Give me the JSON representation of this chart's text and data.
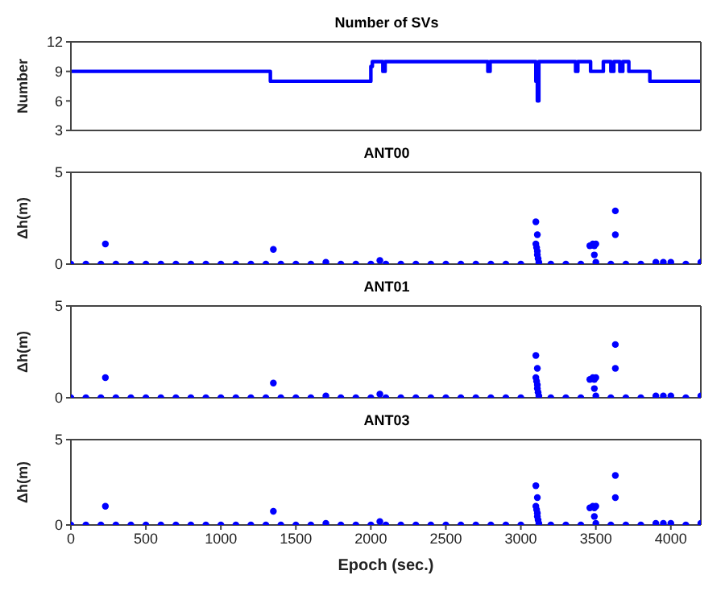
{
  "chart_data": [
    {
      "type": "step",
      "title": "Number of SVs",
      "ylabel": "Number",
      "xlim": [
        0,
        4200
      ],
      "xticks": [
        0,
        500,
        1000,
        1500,
        2000,
        2500,
        3000,
        3500,
        4000
      ],
      "ylim": [
        3,
        12
      ],
      "yticks": [
        3,
        6,
        9,
        12
      ],
      "tick_labels": "y",
      "marker": "none",
      "line_style": "solid",
      "series": [
        {
          "color": "#0000ff",
          "x": [
            0,
            1330,
            2000,
            2010,
            2080,
            2095,
            2780,
            2795,
            3100,
            3110,
            3120,
            3365,
            3380,
            3465,
            3550,
            3600,
            3620,
            3660,
            3680,
            3720,
            3860,
            4200
          ],
          "values": [
            9,
            8,
            9.5,
            10,
            9,
            10,
            9,
            10,
            8,
            6,
            10,
            9,
            10,
            9,
            10,
            9,
            10,
            9,
            10,
            9,
            8,
            8
          ]
        }
      ]
    },
    {
      "type": "scatter",
      "title": "ANT00",
      "ylabel": "Δh(m)",
      "xlim": [
        0,
        4200
      ],
      "xticks": [
        0,
        500,
        1000,
        1500,
        2000,
        2500,
        3000,
        3500,
        4000
      ],
      "ylim": [
        0,
        5
      ],
      "yticks": [
        0,
        5
      ],
      "tick_labels": "y",
      "marker": "circle",
      "series": [
        {
          "color": "#0000ff",
          "x": [
            0,
            100,
            200,
            230,
            300,
            400,
            500,
            600,
            700,
            800,
            900,
            1000,
            1100,
            1200,
            1300,
            1350,
            1400,
            1500,
            1600,
            1700,
            1800,
            1900,
            2000,
            2060,
            2100,
            2200,
            2300,
            2400,
            2500,
            2600,
            2700,
            2800,
            2900,
            3000,
            3100,
            3100,
            3105,
            3110,
            3110,
            3110,
            3115,
            3120,
            3200,
            3300,
            3400,
            3460,
            3480,
            3490,
            3490,
            3500,
            3500,
            3600,
            3630,
            3630,
            3700,
            3800,
            3900,
            3950,
            4000,
            4100,
            4200
          ],
          "values": [
            0,
            0,
            0,
            1.1,
            0,
            0,
            0,
            0,
            0,
            0,
            0,
            0,
            0,
            0,
            0,
            0.8,
            0,
            0,
            0,
            0.1,
            0,
            0,
            0,
            0.2,
            0,
            0,
            0,
            0,
            0,
            0,
            0,
            0,
            0,
            0,
            2.3,
            1.1,
            0.9,
            1.6,
            0.7,
            0.5,
            0.3,
            0.1,
            0,
            0,
            0,
            1.0,
            1.1,
            1.0,
            0.5,
            1.1,
            0.1,
            0,
            2.9,
            1.6,
            0,
            0,
            0.1,
            0.1,
            0.1,
            0,
            0.1
          ]
        }
      ]
    },
    {
      "type": "scatter",
      "title": "ANT01",
      "ylabel": "Δh(m)",
      "xlim": [
        0,
        4200
      ],
      "xticks": [
        0,
        500,
        1000,
        1500,
        2000,
        2500,
        3000,
        3500,
        4000
      ],
      "ylim": [
        0,
        5
      ],
      "yticks": [
        0,
        5
      ],
      "tick_labels": "y",
      "marker": "circle",
      "series": [
        {
          "color": "#0000ff",
          "x": [
            0,
            100,
            200,
            230,
            300,
            400,
            500,
            600,
            700,
            800,
            900,
            1000,
            1100,
            1200,
            1300,
            1350,
            1400,
            1500,
            1600,
            1700,
            1800,
            1900,
            2000,
            2060,
            2100,
            2200,
            2300,
            2400,
            2500,
            2600,
            2700,
            2800,
            2900,
            3000,
            3100,
            3100,
            3105,
            3110,
            3110,
            3110,
            3115,
            3120,
            3200,
            3300,
            3400,
            3460,
            3480,
            3490,
            3490,
            3500,
            3500,
            3600,
            3630,
            3630,
            3700,
            3800,
            3900,
            3950,
            4000,
            4100,
            4200
          ],
          "values": [
            0,
            0,
            0,
            1.1,
            0,
            0,
            0,
            0,
            0,
            0,
            0,
            0,
            0,
            0,
            0,
            0.8,
            0,
            0,
            0,
            0.1,
            0,
            0,
            0,
            0.2,
            0,
            0,
            0,
            0,
            0,
            0,
            0,
            0,
            0,
            0,
            2.3,
            1.1,
            0.9,
            1.6,
            0.7,
            0.5,
            0.3,
            0.1,
            0,
            0,
            0,
            1.0,
            1.1,
            1.0,
            0.5,
            1.1,
            0.1,
            0,
            2.9,
            1.6,
            0,
            0,
            0.1,
            0.1,
            0.1,
            0,
            0.1
          ]
        }
      ]
    },
    {
      "type": "scatter",
      "title": "ANT03",
      "ylabel": "Δh(m)",
      "xlabel": "Epoch (sec.)",
      "xlim": [
        0,
        4200
      ],
      "xticks": [
        0,
        500,
        1000,
        1500,
        2000,
        2500,
        3000,
        3500,
        4000
      ],
      "ylim": [
        0,
        5
      ],
      "yticks": [
        0,
        5
      ],
      "marker": "circle",
      "series": [
        {
          "color": "#0000ff",
          "x": [
            0,
            100,
            200,
            230,
            300,
            400,
            500,
            600,
            700,
            800,
            900,
            1000,
            1100,
            1200,
            1300,
            1350,
            1400,
            1500,
            1600,
            1700,
            1800,
            1900,
            2000,
            2060,
            2100,
            2200,
            2300,
            2400,
            2500,
            2600,
            2700,
            2800,
            2900,
            3000,
            3100,
            3100,
            3105,
            3110,
            3110,
            3110,
            3115,
            3120,
            3200,
            3300,
            3400,
            3460,
            3480,
            3490,
            3490,
            3500,
            3500,
            3600,
            3630,
            3630,
            3700,
            3800,
            3900,
            3950,
            4000,
            4100,
            4200
          ],
          "values": [
            0,
            0,
            0,
            1.1,
            0,
            0,
            0,
            0,
            0,
            0,
            0,
            0,
            0,
            0,
            0,
            0.8,
            0,
            0,
            0,
            0.1,
            0,
            0,
            0,
            0.2,
            0,
            0,
            0,
            0,
            0,
            0,
            0,
            0,
            0,
            0,
            2.3,
            1.1,
            0.9,
            1.6,
            0.7,
            0.5,
            0.3,
            0.1,
            0,
            0,
            0,
            1.0,
            1.1,
            1.0,
            0.5,
            1.1,
            0.1,
            0,
            2.9,
            1.6,
            0,
            0,
            0.1,
            0.1,
            0.1,
            0,
            0.1
          ]
        }
      ]
    }
  ]
}
